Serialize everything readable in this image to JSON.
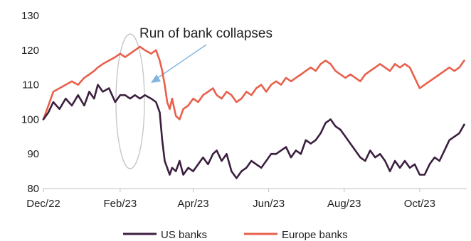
{
  "chart_data": {
    "type": "line",
    "title": "",
    "xlabel": "",
    "ylabel": "",
    "ylim": [
      80,
      130
    ],
    "yticks": [
      80,
      90,
      100,
      110,
      120,
      130
    ],
    "xlim": [
      "2022-12-01",
      "2023-11-08"
    ],
    "xticks": [
      {
        "label": "Dec/22",
        "date": "2022-12-01"
      },
      {
        "label": "Feb/23",
        "date": "2023-02-01"
      },
      {
        "label": "Apr/23",
        "date": "2023-04-01"
      },
      {
        "label": "Jun/23",
        "date": "2023-06-01"
      },
      {
        "label": "Aug/23",
        "date": "2023-08-01"
      },
      {
        "label": "Oct/23",
        "date": "2023-10-01"
      }
    ],
    "grid": false,
    "legend": "bottom",
    "series": [
      {
        "name": "US banks",
        "color": "#3b1f3f",
        "points": [
          [
            "2022-12-01",
            100
          ],
          [
            "2022-12-05",
            102
          ],
          [
            "2022-12-09",
            105
          ],
          [
            "2022-12-14",
            103
          ],
          [
            "2022-12-19",
            106
          ],
          [
            "2022-12-24",
            104
          ],
          [
            "2022-12-29",
            107
          ],
          [
            "2023-01-03",
            104
          ],
          [
            "2023-01-07",
            108
          ],
          [
            "2023-01-11",
            106
          ],
          [
            "2023-01-14",
            110
          ],
          [
            "2023-01-18",
            108
          ],
          [
            "2023-01-23",
            109
          ],
          [
            "2023-01-28",
            105
          ],
          [
            "2023-02-01",
            107
          ],
          [
            "2023-02-05",
            107
          ],
          [
            "2023-02-09",
            106
          ],
          [
            "2023-02-13",
            107
          ],
          [
            "2023-02-17",
            106
          ],
          [
            "2023-02-21",
            107
          ],
          [
            "2023-02-26",
            106
          ],
          [
            "2023-03-02",
            105
          ],
          [
            "2023-03-05",
            102
          ],
          [
            "2023-03-07",
            94
          ],
          [
            "2023-03-09",
            88
          ],
          [
            "2023-03-11",
            86
          ],
          [
            "2023-03-13",
            84
          ],
          [
            "2023-03-15",
            86
          ],
          [
            "2023-03-18",
            85
          ],
          [
            "2023-03-21",
            88
          ],
          [
            "2023-03-24",
            84
          ],
          [
            "2023-03-28",
            86
          ],
          [
            "2023-04-01",
            85
          ],
          [
            "2023-04-05",
            87
          ],
          [
            "2023-04-09",
            89
          ],
          [
            "2023-04-13",
            87
          ],
          [
            "2023-04-17",
            90
          ],
          [
            "2023-04-20",
            91
          ],
          [
            "2023-04-24",
            88
          ],
          [
            "2023-04-28",
            90
          ],
          [
            "2023-05-02",
            85
          ],
          [
            "2023-05-06",
            83
          ],
          [
            "2023-05-10",
            85
          ],
          [
            "2023-05-14",
            86
          ],
          [
            "2023-05-18",
            88
          ],
          [
            "2023-05-22",
            87
          ],
          [
            "2023-05-26",
            86
          ],
          [
            "2023-05-30",
            88
          ],
          [
            "2023-06-03",
            90
          ],
          [
            "2023-06-07",
            90
          ],
          [
            "2023-06-11",
            91
          ],
          [
            "2023-06-15",
            92
          ],
          [
            "2023-06-19",
            89
          ],
          [
            "2023-06-23",
            91
          ],
          [
            "2023-06-27",
            90
          ],
          [
            "2023-07-01",
            94
          ],
          [
            "2023-07-05",
            93
          ],
          [
            "2023-07-09",
            94
          ],
          [
            "2023-07-13",
            96
          ],
          [
            "2023-07-17",
            99
          ],
          [
            "2023-07-21",
            100
          ],
          [
            "2023-07-25",
            98
          ],
          [
            "2023-07-29",
            97
          ],
          [
            "2023-08-02",
            95
          ],
          [
            "2023-08-06",
            93
          ],
          [
            "2023-08-10",
            91
          ],
          [
            "2023-08-14",
            89
          ],
          [
            "2023-08-18",
            88
          ],
          [
            "2023-08-22",
            91
          ],
          [
            "2023-08-26",
            89
          ],
          [
            "2023-08-30",
            90
          ],
          [
            "2023-09-03",
            88
          ],
          [
            "2023-09-07",
            85
          ],
          [
            "2023-09-11",
            88
          ],
          [
            "2023-09-15",
            86
          ],
          [
            "2023-09-19",
            88
          ],
          [
            "2023-09-23",
            86
          ],
          [
            "2023-09-27",
            87
          ],
          [
            "2023-10-01",
            84
          ],
          [
            "2023-10-05",
            84
          ],
          [
            "2023-10-09",
            87
          ],
          [
            "2023-10-13",
            89
          ],
          [
            "2023-10-17",
            88
          ],
          [
            "2023-10-21",
            91
          ],
          [
            "2023-10-25",
            94
          ],
          [
            "2023-10-29",
            95
          ],
          [
            "2023-11-02",
            96
          ],
          [
            "2023-11-06",
            98.5
          ]
        ]
      },
      {
        "name": "Europe banks",
        "color": "#e8604c",
        "points": [
          [
            "2022-12-01",
            100
          ],
          [
            "2022-12-05",
            104
          ],
          [
            "2022-12-09",
            108
          ],
          [
            "2022-12-14",
            109
          ],
          [
            "2022-12-19",
            110
          ],
          [
            "2022-12-24",
            111
          ],
          [
            "2022-12-29",
            110
          ],
          [
            "2023-01-03",
            112
          ],
          [
            "2023-01-07",
            113
          ],
          [
            "2023-01-11",
            114
          ],
          [
            "2023-01-14",
            115
          ],
          [
            "2023-01-18",
            116
          ],
          [
            "2023-01-23",
            117
          ],
          [
            "2023-01-28",
            118
          ],
          [
            "2023-02-01",
            119
          ],
          [
            "2023-02-05",
            118
          ],
          [
            "2023-02-09",
            119
          ],
          [
            "2023-02-13",
            120
          ],
          [
            "2023-02-17",
            121
          ],
          [
            "2023-02-21",
            120
          ],
          [
            "2023-02-26",
            119
          ],
          [
            "2023-03-02",
            120
          ],
          [
            "2023-03-05",
            117
          ],
          [
            "2023-03-07",
            114
          ],
          [
            "2023-03-09",
            110
          ],
          [
            "2023-03-11",
            105
          ],
          [
            "2023-03-13",
            103
          ],
          [
            "2023-03-15",
            106
          ],
          [
            "2023-03-18",
            101
          ],
          [
            "2023-03-21",
            100
          ],
          [
            "2023-03-24",
            103
          ],
          [
            "2023-03-28",
            104
          ],
          [
            "2023-04-01",
            106
          ],
          [
            "2023-04-05",
            105
          ],
          [
            "2023-04-09",
            107
          ],
          [
            "2023-04-13",
            108
          ],
          [
            "2023-04-17",
            109
          ],
          [
            "2023-04-20",
            107
          ],
          [
            "2023-04-24",
            106
          ],
          [
            "2023-04-28",
            108
          ],
          [
            "2023-05-02",
            107
          ],
          [
            "2023-05-06",
            105
          ],
          [
            "2023-05-10",
            106
          ],
          [
            "2023-05-14",
            108
          ],
          [
            "2023-05-18",
            107
          ],
          [
            "2023-05-22",
            109
          ],
          [
            "2023-05-26",
            110
          ],
          [
            "2023-05-30",
            108
          ],
          [
            "2023-06-03",
            110
          ],
          [
            "2023-06-07",
            111
          ],
          [
            "2023-06-11",
            110
          ],
          [
            "2023-06-15",
            112
          ],
          [
            "2023-06-19",
            111
          ],
          [
            "2023-06-23",
            112
          ],
          [
            "2023-06-27",
            113
          ],
          [
            "2023-07-01",
            114
          ],
          [
            "2023-07-05",
            115
          ],
          [
            "2023-07-09",
            114
          ],
          [
            "2023-07-13",
            116
          ],
          [
            "2023-07-17",
            117
          ],
          [
            "2023-07-21",
            116
          ],
          [
            "2023-07-25",
            114
          ],
          [
            "2023-07-29",
            113
          ],
          [
            "2023-08-02",
            112
          ],
          [
            "2023-08-06",
            113
          ],
          [
            "2023-08-10",
            112
          ],
          [
            "2023-08-14",
            111
          ],
          [
            "2023-08-18",
            113
          ],
          [
            "2023-08-22",
            114
          ],
          [
            "2023-08-26",
            115
          ],
          [
            "2023-08-30",
            116
          ],
          [
            "2023-09-03",
            115
          ],
          [
            "2023-09-07",
            114
          ],
          [
            "2023-09-11",
            116
          ],
          [
            "2023-09-15",
            115
          ],
          [
            "2023-09-19",
            116
          ],
          [
            "2023-09-23",
            115
          ],
          [
            "2023-09-27",
            112
          ],
          [
            "2023-10-01",
            109
          ],
          [
            "2023-10-05",
            110
          ],
          [
            "2023-10-09",
            111
          ],
          [
            "2023-10-13",
            112
          ],
          [
            "2023-10-17",
            113
          ],
          [
            "2023-10-21",
            114
          ],
          [
            "2023-10-25",
            115
          ],
          [
            "2023-10-29",
            114
          ],
          [
            "2023-11-02",
            115
          ],
          [
            "2023-11-06",
            117
          ]
        ]
      }
    ],
    "annotations": [
      {
        "text": "Run of bank collapses"
      }
    ]
  }
}
